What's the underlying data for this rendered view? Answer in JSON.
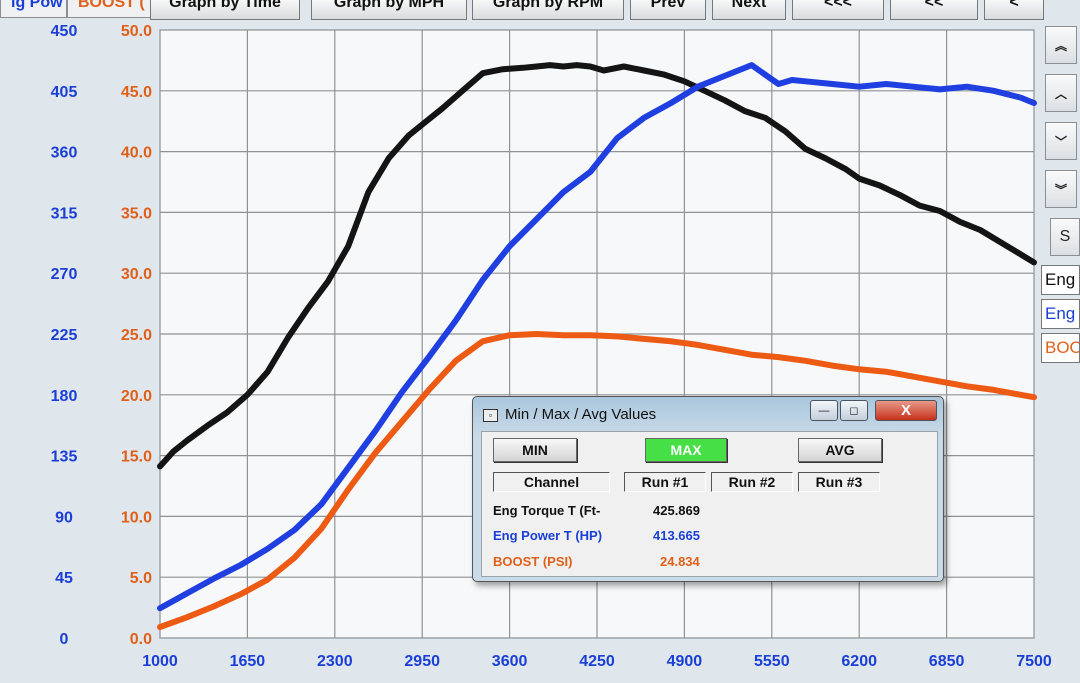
{
  "top_tabs": {
    "power": "ig Pow",
    "boost": "BOOST (",
    "by_time": "Graph by Time",
    "by_mph": "Graph by MPH",
    "by_rpm": "Graph by RPM",
    "prev": "Prev",
    "next": "Next",
    "fast_back": "<<<",
    "back": "<<",
    "fwd": "<"
  },
  "side": {
    "scroll_top": "︽",
    "scroll_up": "︿",
    "scroll_down": "﹀",
    "scroll_bottom": "︾",
    "s_label": "S",
    "legend": [
      "Eng",
      "Eng",
      "BOO"
    ]
  },
  "dialog": {
    "title": "Min / Max / Avg Values",
    "win_min": "—",
    "win_max": "◻",
    "win_close": "X",
    "btn_min": "MIN",
    "btn_max": "MAX",
    "btn_avg": "AVG",
    "headers": [
      "Channel",
      "Run #1",
      "Run #2",
      "Run #3"
    ],
    "rows": [
      {
        "channel": "Eng Torque T (Ft-",
        "run1": "425.869"
      },
      {
        "channel": "Eng Power T (HP)",
        "run1": "413.665"
      },
      {
        "channel": "BOOST (PSI)",
        "run1": "24.834"
      }
    ]
  },
  "colors": {
    "torque": "#141414",
    "power": "#1f3fe0",
    "boost": "#ec5a14",
    "axis_blue": "#1a3fd6",
    "axis_orange": "#e0601a",
    "grid": "#8f9296"
  },
  "chart_data": {
    "type": "line",
    "x_ticks": [
      "1000",
      "1650",
      "2300",
      "2950",
      "3600",
      "4250",
      "4900",
      "5550",
      "6200",
      "6850",
      "7500"
    ],
    "y_left_ticks": [
      "0",
      "45",
      "90",
      "135",
      "180",
      "225",
      "270",
      "315",
      "360",
      "405",
      "450"
    ],
    "y_right_ticks": [
      "0.0",
      "5.0",
      "10.0",
      "15.0",
      "20.0",
      "25.0",
      "30.0",
      "35.0",
      "40.0",
      "45.0",
      "50.0"
    ],
    "xlim": [
      1000,
      7500
    ],
    "ylim_left": [
      0,
      450
    ],
    "ylim_right": [
      0,
      50
    ],
    "grid": true,
    "series": [
      {
        "axis": "left",
        "color_key": "torque",
        "x": [
          1000,
          1100,
          1200,
          1350,
          1500,
          1650,
          1800,
          1950,
          2100,
          2250,
          2400,
          2550,
          2700,
          2850,
          2950,
          3100,
          3250,
          3400,
          3550,
          3700,
          3800,
          3900,
          4000,
          4100,
          4200,
          4300,
          4450,
          4600,
          4750,
          4900,
          5050,
          5200,
          5350,
          5500,
          5650,
          5800,
          5950,
          6100,
          6200,
          6350,
          6500,
          6650,
          6800,
          6950,
          7100,
          7300,
          7500
        ],
        "values": [
          127,
          138,
          146,
          157,
          167,
          180,
          197,
          222,
          244,
          264,
          290,
          330,
          355,
          372,
          380,
          392,
          405,
          418,
          421,
          422,
          423,
          424,
          423,
          424,
          423,
          420,
          423,
          420,
          417,
          412,
          405,
          398,
          390,
          385,
          375,
          362,
          355,
          347,
          340,
          335,
          328,
          320,
          316,
          308,
          302,
          290,
          278
        ]
      },
      {
        "axis": "left",
        "color_key": "power",
        "x": [
          1000,
          1200,
          1400,
          1600,
          1800,
          2000,
          2200,
          2400,
          2600,
          2800,
          3000,
          3200,
          3400,
          3600,
          3800,
          4000,
          4200,
          4400,
          4600,
          4800,
          5000,
          5200,
          5400,
          5600,
          5700,
          5800,
          6000,
          6200,
          6400,
          6600,
          6800,
          7000,
          7200,
          7400,
          7500
        ],
        "values": [
          22,
          33,
          44,
          54,
          66,
          80,
          99,
          126,
          153,
          182,
          208,
          235,
          265,
          290,
          310,
          330,
          345,
          370,
          385,
          396,
          408,
          416,
          424,
          410,
          413,
          412,
          410,
          408,
          410,
          408,
          406,
          408,
          405,
          400,
          396
        ]
      },
      {
        "axis": "right",
        "color_key": "boost",
        "x": [
          1000,
          1200,
          1400,
          1600,
          1800,
          2000,
          2200,
          2400,
          2600,
          2800,
          3000,
          3200,
          3400,
          3600,
          3800,
          4000,
          4200,
          4400,
          4600,
          4800,
          5000,
          5200,
          5400,
          5600,
          5800,
          6000,
          6200,
          6400,
          6600,
          6800,
          7000,
          7200,
          7400,
          7500
        ],
        "values": [
          0.9,
          1.7,
          2.6,
          3.6,
          4.8,
          6.6,
          9.0,
          12.2,
          15.2,
          17.8,
          20.4,
          22.8,
          24.4,
          24.9,
          25.0,
          24.9,
          24.9,
          24.8,
          24.6,
          24.4,
          24.1,
          23.7,
          23.3,
          23.1,
          22.8,
          22.4,
          22.1,
          21.9,
          21.5,
          21.1,
          20.7,
          20.4,
          20.0,
          19.8
        ]
      }
    ]
  }
}
